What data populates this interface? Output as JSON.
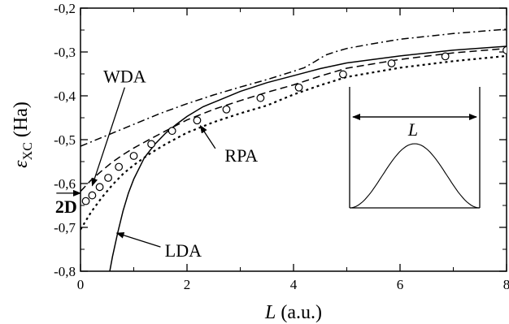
{
  "chart_data": {
    "type": "line",
    "xlabel_var": "L",
    "xlabel_unit": "(a.u.)",
    "ylabel_var": "ε",
    "ylabel_sub": "XC",
    "ylabel_unit": "(Ha)",
    "xlim": [
      0,
      8
    ],
    "ylim": [
      -0.8,
      -0.2
    ],
    "grid": false,
    "x_ticks": [
      0,
      2,
      4,
      6,
      8
    ],
    "x_tick_labels": [
      "0",
      "2",
      "4",
      "6",
      "8"
    ],
    "y_ticks": [
      -0.2,
      -0.3,
      -0.4,
      -0.5,
      -0.6,
      -0.7,
      -0.8
    ],
    "y_tick_labels": [
      "-0,2",
      "-0,3",
      "-0,4",
      "-0,5",
      "-0,6",
      "-0,7",
      "-0,8"
    ],
    "series": [
      {
        "name": "LDA",
        "style": "solid",
        "x": [
          0.55,
          0.6,
          0.7,
          0.8,
          0.9,
          1.0,
          1.2,
          1.4,
          1.6,
          1.8,
          2.0,
          2.3,
          2.6,
          3.0,
          3.5,
          4.0,
          4.5,
          5.0,
          6.0,
          7.0,
          8.0
        ],
        "y": [
          -0.8,
          -0.767,
          -0.712,
          -0.662,
          -0.622,
          -0.59,
          -0.541,
          -0.51,
          -0.485,
          -0.465,
          -0.447,
          -0.425,
          -0.41,
          -0.39,
          -0.37,
          -0.354,
          -0.338,
          -0.325,
          -0.309,
          -0.296,
          -0.287
        ]
      },
      {
        "name": "WDA",
        "style": "dashed",
        "x": [
          0.0,
          0.2,
          0.4,
          0.6,
          0.8,
          1.0,
          1.3,
          1.6,
          2.0,
          2.5,
          3.0,
          3.5,
          4.0,
          4.5,
          5.0,
          6.0,
          7.0,
          8.0
        ],
        "y": [
          -0.618,
          -0.592,
          -0.571,
          -0.551,
          -0.534,
          -0.519,
          -0.499,
          -0.48,
          -0.455,
          -0.431,
          -0.411,
          -0.392,
          -0.375,
          -0.355,
          -0.337,
          -0.317,
          -0.302,
          -0.292
        ]
      },
      {
        "name": "RPA",
        "style": "dotted",
        "x": [
          0.0,
          0.2,
          0.4,
          0.6,
          0.8,
          1.0,
          1.3,
          1.6,
          2.0,
          2.5,
          3.0,
          3.5,
          4.0,
          4.5,
          5.0,
          6.0,
          7.0,
          8.0
        ],
        "y": [
          -0.705,
          -0.665,
          -0.632,
          -0.603,
          -0.578,
          -0.558,
          -0.532,
          -0.51,
          -0.484,
          -0.46,
          -0.44,
          -0.422,
          -0.397,
          -0.376,
          -0.357,
          -0.336,
          -0.321,
          -0.309
        ]
      },
      {
        "name": "",
        "style": "dashdot",
        "x": [
          0.0,
          0.5,
          1.0,
          1.5,
          2.0,
          2.5,
          3.0,
          3.5,
          4.0,
          4.2,
          4.4,
          4.6,
          4.8,
          5.0,
          5.5,
          6.0,
          7.0,
          8.0
        ],
        "y": [
          -0.515,
          -0.49,
          -0.465,
          -0.44,
          -0.418,
          -0.398,
          -0.38,
          -0.363,
          -0.344,
          -0.336,
          -0.322,
          -0.307,
          -0.299,
          -0.292,
          -0.281,
          -0.271,
          -0.258,
          -0.248
        ]
      },
      {
        "name": "",
        "style": "markers",
        "x": [
          0.1,
          0.22,
          0.36,
          0.52,
          0.72,
          1.0,
          1.33,
          1.72,
          2.19,
          2.74,
          3.38,
          4.1,
          4.93,
          5.84,
          6.85,
          8.0
        ],
        "y": [
          -0.64,
          -0.627,
          -0.608,
          -0.587,
          -0.562,
          -0.537,
          -0.51,
          -0.48,
          -0.456,
          -0.431,
          -0.405,
          -0.381,
          -0.351,
          -0.326,
          -0.31,
          -0.296
        ]
      }
    ],
    "annotations": [
      {
        "text": "WDA",
        "x": 0.83,
        "y": -0.355,
        "arrow_to": [
          0.22,
          -0.605
        ]
      },
      {
        "text": "RPA",
        "x": 3.02,
        "y": -0.535,
        "arrow_to": [
          2.25,
          -0.468
        ]
      },
      {
        "text": "LDA",
        "x": 1.93,
        "y": -0.752,
        "arrow_to": [
          0.68,
          -0.713
        ]
      },
      {
        "text": "2D",
        "x": -0.27,
        "y": -0.652,
        "arrow_to": [
          0.0,
          -0.622
        ]
      }
    ],
    "inset": {
      "label": "L",
      "description": "bell-shaped curve inside box with double arrow across width"
    }
  }
}
